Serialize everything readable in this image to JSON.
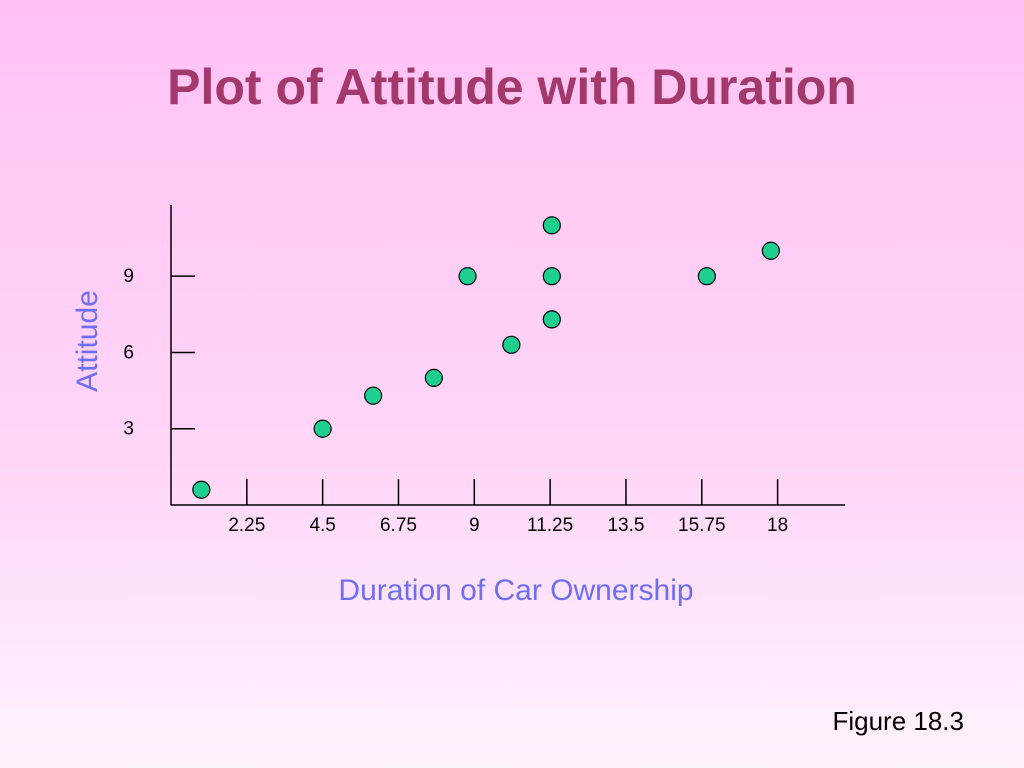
{
  "slide": {
    "title": "Plot of Attitude with Duration",
    "caption": "Figure 18.3"
  },
  "colors": {
    "title": "#a3386b",
    "axis_title": "#6e6ef0",
    "point_fill": "#1fcf8f",
    "point_stroke": "#000000"
  },
  "chart_data": {
    "type": "scatter",
    "title": "Plot of Attitude with Duration",
    "xlabel": "Duration of Car Ownership",
    "ylabel": "Attitude",
    "x_ticks": [
      2.25,
      4.5,
      6.75,
      9,
      11.25,
      13.5,
      15.75,
      18
    ],
    "x_tick_labels": [
      "2.25",
      "4.5",
      "6.75",
      "9",
      "11.25",
      "13.5",
      "15.75",
      "18"
    ],
    "y_ticks": [
      3,
      6,
      9
    ],
    "y_tick_labels": [
      "3",
      "6",
      "9"
    ],
    "xlim": [
      0,
      20
    ],
    "ylim": [
      0,
      11.8
    ],
    "grid": false,
    "points": [
      {
        "x": 0.9,
        "y": 0.6
      },
      {
        "x": 4.5,
        "y": 3.0
      },
      {
        "x": 6.0,
        "y": 4.3
      },
      {
        "x": 7.8,
        "y": 5.0
      },
      {
        "x": 8.8,
        "y": 9.0
      },
      {
        "x": 10.1,
        "y": 6.3
      },
      {
        "x": 11.3,
        "y": 7.3
      },
      {
        "x": 11.3,
        "y": 9.0
      },
      {
        "x": 11.3,
        "y": 11.0
      },
      {
        "x": 15.9,
        "y": 9.0
      },
      {
        "x": 17.8,
        "y": 10.0
      }
    ]
  }
}
